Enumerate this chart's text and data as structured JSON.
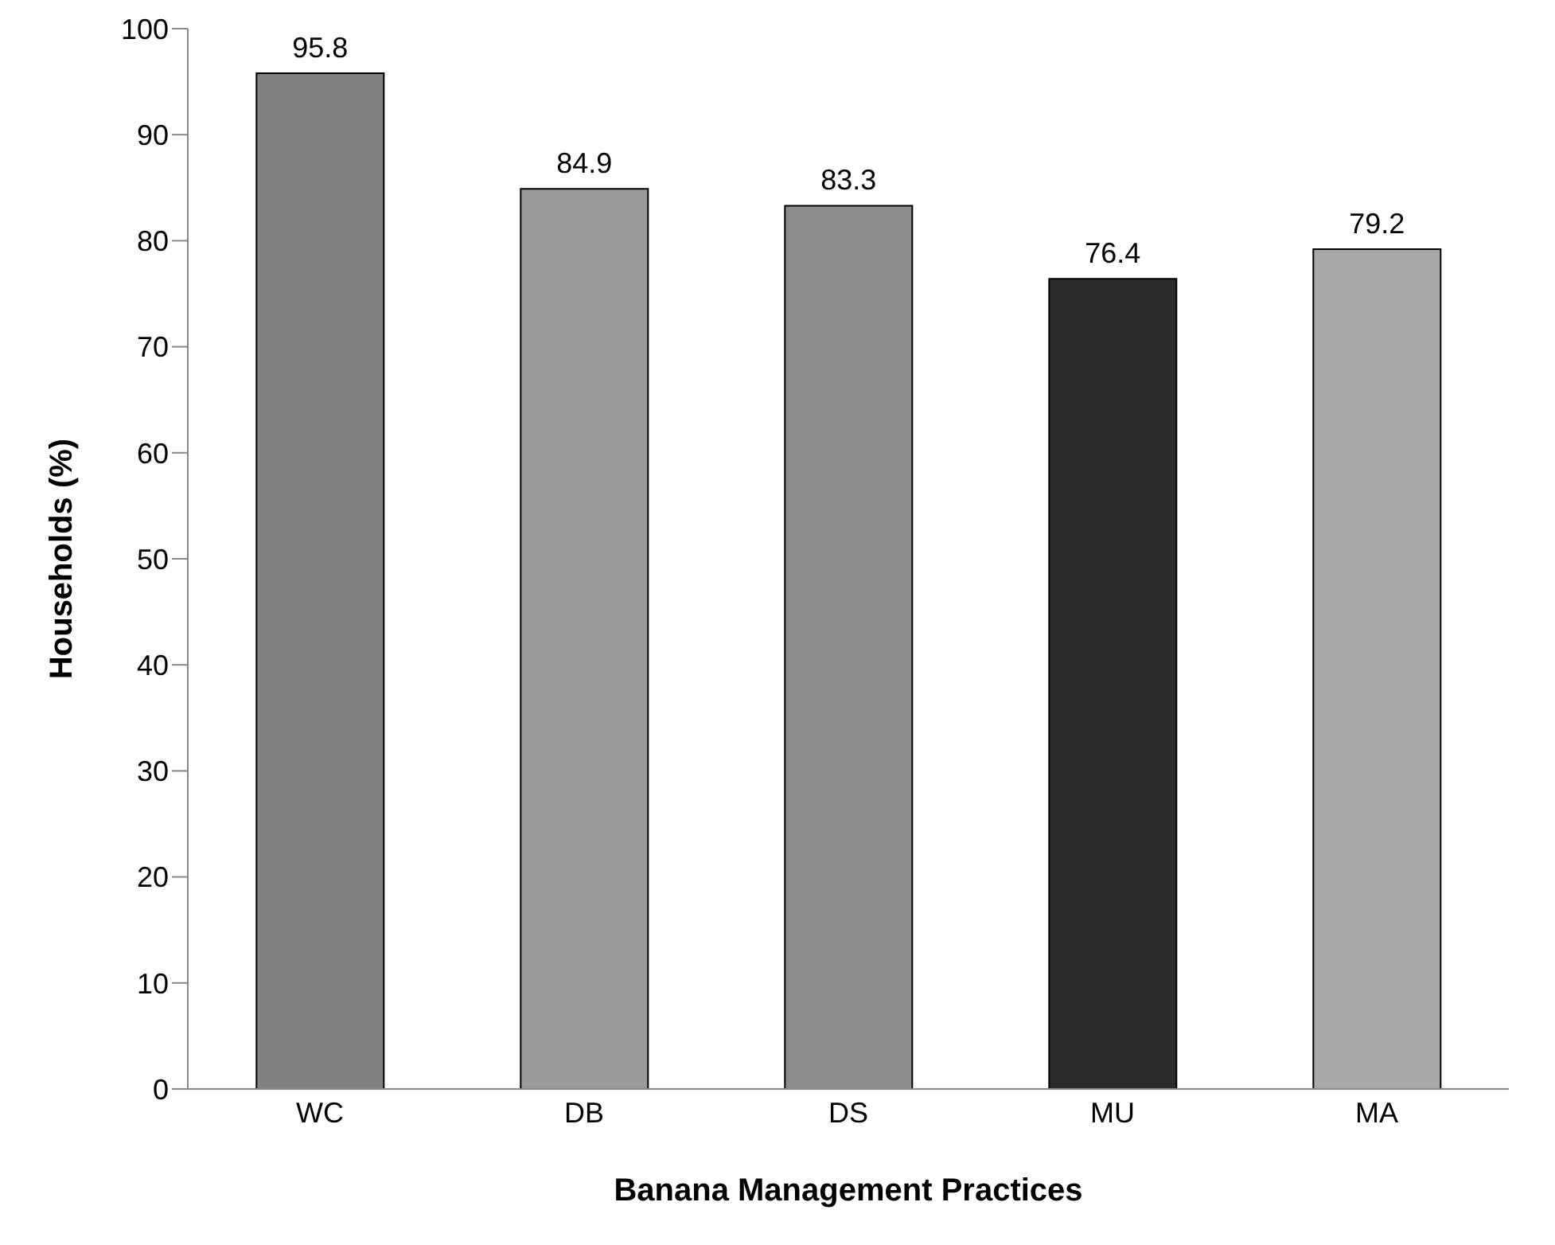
{
  "chart_data": {
    "type": "bar",
    "xlabel": "Banana Management Practices",
    "ylabel": "Households (%)",
    "categories": [
      "WC",
      "DB",
      "DS",
      "MU",
      "MA"
    ],
    "values": [
      95.8,
      84.9,
      83.3,
      76.4,
      79.2
    ],
    "colors": [
      "#808080",
      "#9a9a9a",
      "#8c8c8c",
      "#2a2a2a",
      "#a8a8a8"
    ],
    "ylim": [
      0,
      100
    ],
    "yticks": [
      0,
      10,
      20,
      30,
      40,
      50,
      60,
      70,
      80,
      90,
      100
    ],
    "data_labels": true,
    "grid": false,
    "legend": false
  }
}
